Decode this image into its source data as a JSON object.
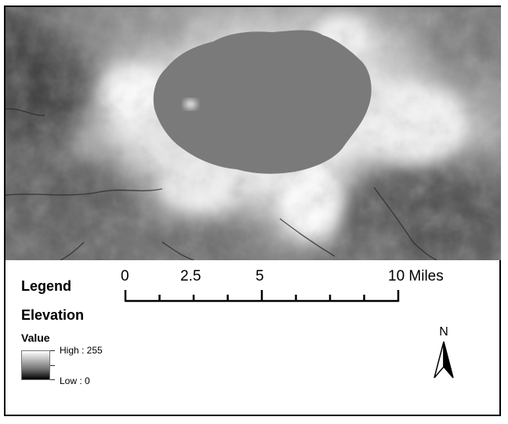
{
  "legend": {
    "title": "Legend",
    "layer_name": "Elevation",
    "field": "Value",
    "high_label": "High : 255",
    "low_label": "Low : 0",
    "ramp_colors": [
      "#ffffff",
      "#000000"
    ]
  },
  "scalebar": {
    "labels": [
      "0",
      "2.5",
      "5",
      "10 Miles"
    ]
  },
  "north_arrow": {
    "label": "N",
    "icon": "north-arrow-icon"
  },
  "map": {
    "layer": "elevation-raster",
    "colors": {
      "lake": "#7a7a7a",
      "rim": "#f2f2f2",
      "lowland": "#555555"
    }
  }
}
